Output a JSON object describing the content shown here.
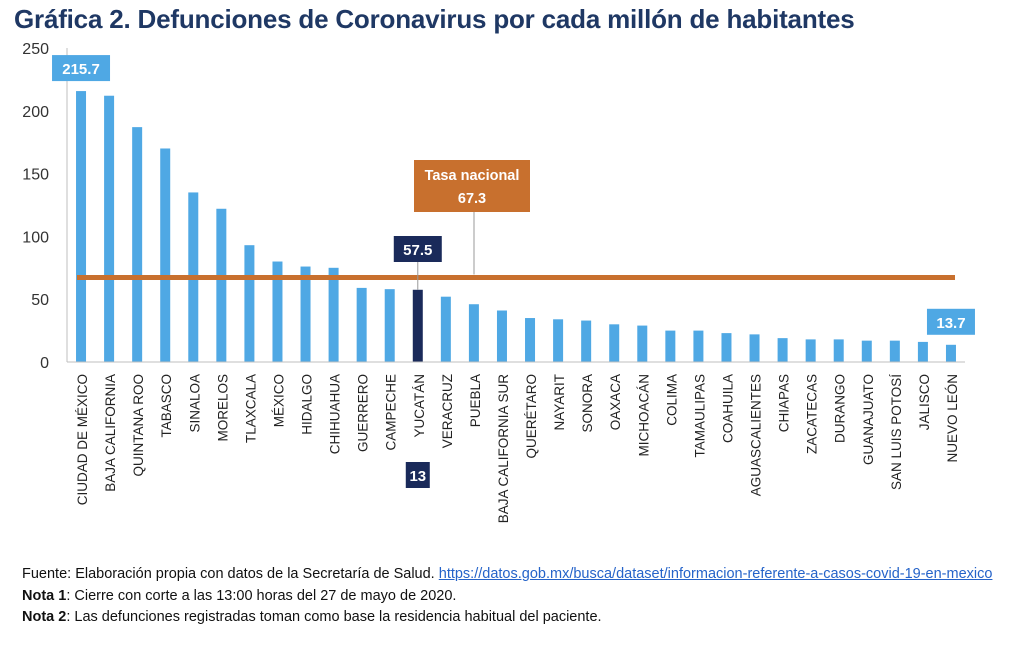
{
  "title": "Gráfica 2. Defunciones de Coronavirus por cada millón de habitantes",
  "chart_data": {
    "type": "bar",
    "title": "Gráfica 2. Defunciones de Coronavirus por cada millón de habitantes",
    "ylim": [
      0,
      250
    ],
    "yticks": [
      "0",
      "50",
      "100",
      "150",
      "200",
      "250"
    ],
    "grid": false,
    "categories": [
      "CIUDAD DE MÉXICO",
      "BAJA CALIFORNIA",
      "QUINTANA ROO",
      "TABASCO",
      "SINALOA",
      "MORELOS",
      "TLAXCALA",
      "MÉXICO",
      "HIDALGO",
      "CHIHUAHUA",
      "GUERRERO",
      "CAMPECHE",
      "YUCATÁN",
      "VERACRUZ",
      "PUEBLA",
      "BAJA CALIFORNIA SUR",
      "QUERÉTARO",
      "NAYARIT",
      "SONORA",
      "OAXACA",
      "MICHOACÁN",
      "COLIMA",
      "TAMAULIPAS",
      "COAHUILA",
      "AGUASCALIENTES",
      "CHIAPAS",
      "ZACATECAS",
      "DURANGO",
      "GUANAJUATO",
      "SAN LUIS POTOSÍ",
      "JALISCO",
      "NUEVO LEÓN"
    ],
    "values": [
      215.7,
      212,
      187,
      170,
      135,
      122,
      93,
      80,
      76,
      75,
      59,
      58,
      57.5,
      52,
      46,
      41,
      35,
      34,
      33,
      30,
      29,
      25,
      25,
      23,
      22,
      19,
      18,
      18,
      17,
      17,
      16,
      13.7
    ],
    "highlight": "YUCATÁN",
    "highlight_rank": "13",
    "bar_color": "#4fa8e4",
    "highlight_color": "#1a2a5a",
    "data_labels": [
      {
        "category": "CIUDAD DE MÉXICO",
        "text": "215.7"
      },
      {
        "category": "YUCATÁN",
        "text": "57.5"
      },
      {
        "category": "NUEVO LEÓN",
        "text": "13.7"
      }
    ],
    "reference_line": {
      "value": 67.3,
      "label": "Tasa nacional",
      "value_label": "67.3",
      "color": "#c8702e"
    }
  },
  "notes": {
    "source_prefix": "Fuente: Elaboración propia con datos de la Secretaría de Salud. ",
    "source_link": "https://datos.gob.mx/busca/dataset/informacion-referente-a-casos-covid-19-en-mexico",
    "nota1_label": "Nota 1",
    "nota1_text": ": Cierre con corte a las 13:00 horas del 27 de mayo de 2020.",
    "nota2_label": "Nota 2",
    "nota2_text": ": Las defunciones registradas toman como base la residencia habitual del paciente."
  }
}
